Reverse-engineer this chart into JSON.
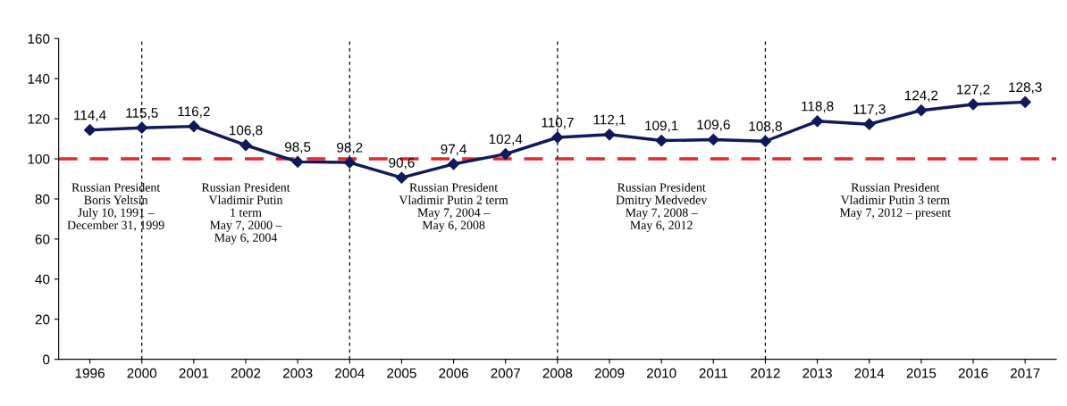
{
  "chart_data": {
    "type": "line",
    "categories": [
      "1996",
      "2000",
      "2001",
      "2002",
      "2003",
      "2004",
      "2005",
      "2006",
      "2007",
      "2008",
      "2009",
      "2010",
      "2011",
      "2012",
      "2013",
      "2014",
      "2015",
      "2016",
      "2017"
    ],
    "series": [
      {
        "color": "#0f1a5c",
        "values": [
          114.4,
          115.5,
          116.2,
          106.8,
          98.5,
          98.2,
          90.6,
          97.4,
          102.4,
          110.7,
          112.1,
          109.1,
          109.6,
          108.8,
          118.8,
          117.3,
          124.2,
          127.2,
          128.3
        ],
        "value_labels": [
          "114,4",
          "115,5",
          "116,2",
          "106,8",
          "98,5",
          "98,2",
          "90,6",
          "97,4",
          "102,4",
          "110,7",
          "112,1",
          "109,1",
          "109,6",
          "108,8",
          "118,8",
          "117,3",
          "124,2",
          "127,2",
          "128,3"
        ]
      }
    ],
    "ylim": [
      0,
      160
    ],
    "yticks": [
      0,
      20,
      40,
      60,
      80,
      100,
      120,
      140,
      160
    ],
    "marker": "diamond",
    "line_style": "solid",
    "ref_lines": [
      {
        "axis": "y",
        "value": 100,
        "color": "#e8262b",
        "line_style": "dashed"
      },
      {
        "axis": "x",
        "value": "2000",
        "color": "#000000",
        "line_style": "dotted"
      },
      {
        "axis": "x",
        "value": "2004",
        "color": "#000000",
        "line_style": "dotted"
      },
      {
        "axis": "x",
        "value": "2008",
        "color": "#000000",
        "line_style": "dotted"
      },
      {
        "axis": "x",
        "value": "2012",
        "color": "#000000",
        "line_style": "dotted"
      }
    ],
    "annotations": [
      "Russian President\nBoris Yeltsin\nJuly 10, 1991 –\nDecember 31, 1999",
      "Russian President\nVladimir Putin\n1 term\nMay 7, 2000 –\nMay 6, 2004",
      "Russian President\nVladimir Putin 2 term\nMay 7, 2004 –\nMay 6, 2008",
      "Russian President\nDmitry Medvedev\nMay 7, 2008 –\nMay 6, 2012",
      "Russian President\nVladimir Putin 3 term\nMay 7, 2012 – present"
    ]
  }
}
